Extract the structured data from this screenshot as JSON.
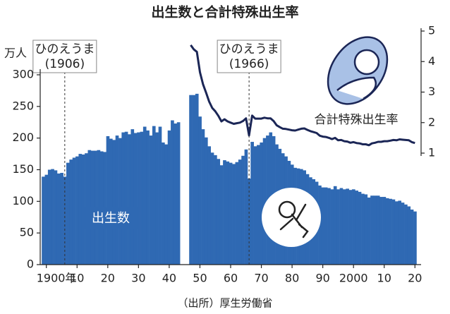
{
  "chart_data": {
    "type": "bar",
    "title": "出生数と合計特殊出生率",
    "ylabel": "万人",
    "source": "（出所）厚生労働省",
    "x": [
      1899,
      1900,
      1901,
      1902,
      1903,
      1904,
      1905,
      1906,
      1907,
      1908,
      1909,
      1910,
      1911,
      1912,
      1913,
      1914,
      1915,
      1916,
      1917,
      1918,
      1919,
      1920,
      1921,
      1922,
      1923,
      1924,
      1925,
      1926,
      1927,
      1928,
      1929,
      1930,
      1931,
      1932,
      1933,
      1934,
      1935,
      1936,
      1937,
      1938,
      1939,
      1940,
      1941,
      1942,
      1943,
      1944,
      1945,
      1946,
      1947,
      1948,
      1949,
      1950,
      1951,
      1952,
      1953,
      1954,
      1955,
      1956,
      1957,
      1958,
      1959,
      1960,
      1961,
      1962,
      1963,
      1964,
      1965,
      1966,
      1967,
      1968,
      1969,
      1970,
      1971,
      1972,
      1973,
      1974,
      1975,
      1976,
      1977,
      1978,
      1979,
      1980,
      1981,
      1982,
      1983,
      1984,
      1985,
      1986,
      1987,
      1988,
      1989,
      1990,
      1991,
      1992,
      1993,
      1994,
      1995,
      1996,
      1997,
      1998,
      1999,
      2000,
      2001,
      2002,
      2003,
      2004,
      2005,
      2006,
      2007,
      2008,
      2009,
      2010,
      2011,
      2012,
      2013,
      2014,
      2015,
      2016,
      2017,
      2018,
      2019,
      2020
    ],
    "series": [
      {
        "name": "出生数",
        "type": "bar",
        "color": "#2f69b3",
        "values": [
          139,
          142,
          150,
          151,
          149,
          144,
          145,
          139,
          161,
          166,
          169,
          171,
          175,
          174,
          176,
          181,
          180,
          180,
          181,
          179,
          178,
          203,
          199,
          197,
          204,
          200,
          209,
          210,
          206,
          214,
          208,
          209,
          210,
          218,
          212,
          204,
          219,
          209,
          218,
          193,
          190,
          212,
          228,
          223,
          225,
          null,
          null,
          null,
          268,
          268,
          270,
          234,
          214,
          201,
          187,
          177,
          173,
          167,
          157,
          165,
          163,
          161,
          159,
          162,
          166,
          172,
          182,
          136,
          194,
          187,
          189,
          193,
          200,
          204,
          209,
          203,
          190,
          183,
          176,
          171,
          164,
          158,
          153,
          152,
          151,
          149,
          143,
          138,
          135,
          131,
          125,
          122,
          122,
          121,
          119,
          124,
          119,
          121,
          119,
          120,
          118,
          119,
          117,
          115,
          112,
          111,
          106,
          109,
          109,
          109,
          107,
          107,
          105,
          104,
          103,
          100,
          101,
          98,
          95,
          92,
          87,
          84
        ]
      },
      {
        "name": "合計特殊出生率",
        "type": "line",
        "axis": "y2",
        "color": "#1b2656",
        "values": [
          null,
          null,
          null,
          null,
          null,
          null,
          null,
          null,
          null,
          null,
          null,
          null,
          null,
          null,
          null,
          null,
          null,
          null,
          null,
          null,
          null,
          null,
          null,
          null,
          null,
          null,
          null,
          null,
          null,
          null,
          null,
          null,
          null,
          null,
          null,
          null,
          null,
          null,
          null,
          null,
          null,
          null,
          null,
          null,
          null,
          null,
          null,
          null,
          4.54,
          4.4,
          4.32,
          3.65,
          3.26,
          2.98,
          2.69,
          2.48,
          2.37,
          2.22,
          2.04,
          2.11,
          2.04,
          2.0,
          1.96,
          1.98,
          2.0,
          2.05,
          2.14,
          1.58,
          2.23,
          2.13,
          2.13,
          2.13,
          2.16,
          2.14,
          2.14,
          2.05,
          1.91,
          1.85,
          1.8,
          1.79,
          1.77,
          1.75,
          1.74,
          1.77,
          1.8,
          1.81,
          1.76,
          1.72,
          1.69,
          1.66,
          1.57,
          1.54,
          1.53,
          1.5,
          1.46,
          1.5,
          1.42,
          1.43,
          1.39,
          1.38,
          1.34,
          1.36,
          1.33,
          1.32,
          1.29,
          1.29,
          1.26,
          1.32,
          1.34,
          1.37,
          1.37,
          1.39,
          1.39,
          1.41,
          1.43,
          1.42,
          1.45,
          1.44,
          1.43,
          1.42,
          1.36,
          1.33
        ]
      }
    ],
    "xlim": [
      1898,
      2022
    ],
    "xticks": [
      {
        "value": 1900,
        "label": "1900年"
      },
      {
        "value": 1910,
        "label": "10"
      },
      {
        "value": 1920,
        "label": "20"
      },
      {
        "value": 1930,
        "label": "30"
      },
      {
        "value": 1940,
        "label": "40"
      },
      {
        "value": 1950,
        "label": "50"
      },
      {
        "value": 1960,
        "label": "60"
      },
      {
        "value": 1970,
        "label": "70"
      },
      {
        "value": 1980,
        "label": "80"
      },
      {
        "value": 1990,
        "label": "90"
      },
      2000,
      {
        "value": 2010,
        "label": "10"
      },
      {
        "value": 2020,
        "label": "20"
      }
    ],
    "ylim": [
      0,
      300
    ],
    "yticks": [
      0,
      50,
      100,
      150,
      200,
      250,
      300
    ],
    "y2lim": [
      1,
      5
    ],
    "y2ticks": [
      1,
      2,
      3,
      4,
      5
    ],
    "annotations": [
      {
        "title": "ひのえうま",
        "year": {
          "value": 1906,
          "label": "(1906)"
        }
      },
      {
        "title": "ひのえうま",
        "year": {
          "value": 1966,
          "label": "(1966)"
        }
      }
    ]
  }
}
